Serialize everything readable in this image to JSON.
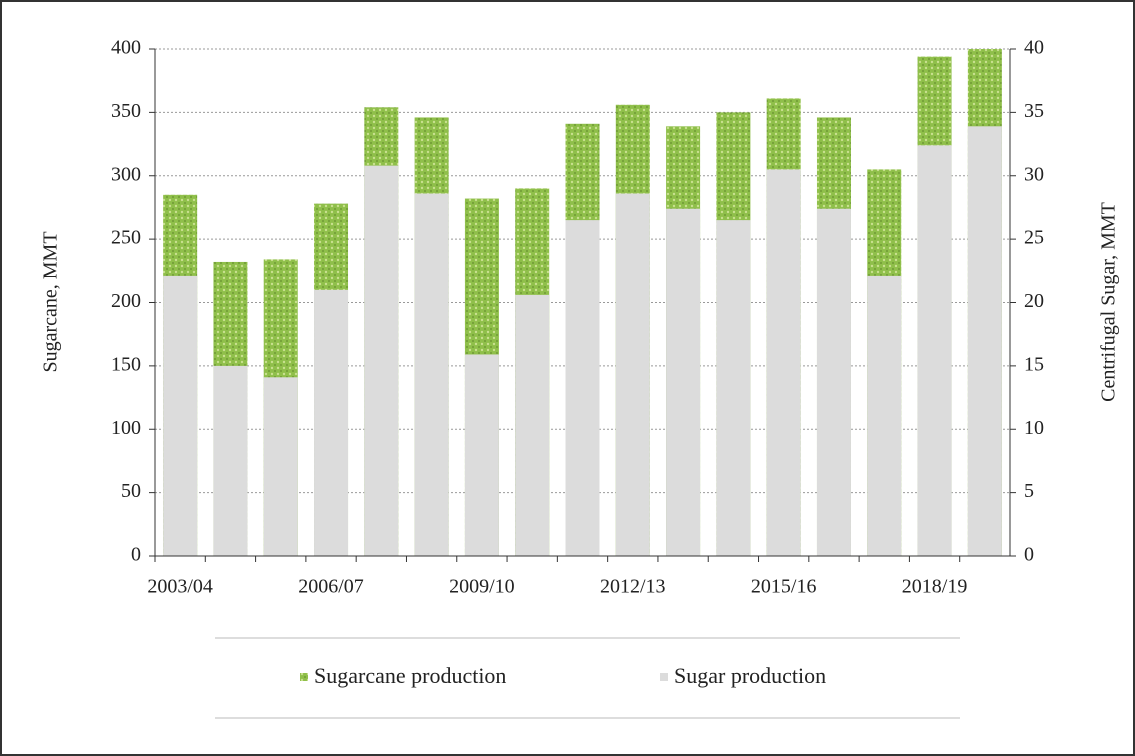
{
  "chart_data": {
    "type": "bar",
    "categories": [
      "2003/04",
      null,
      null,
      "2006/07",
      null,
      null,
      "2009/10",
      null,
      null,
      "2012/13",
      null,
      null,
      "2015/16",
      null,
      null,
      "2018/19",
      null
    ],
    "series": [
      {
        "name": "Sugarcane production",
        "color": "#8fbf4a",
        "axis": "y",
        "values": [
          285,
          232,
          234,
          278,
          354,
          346,
          282,
          290,
          341,
          356,
          339,
          350,
          361,
          346,
          305,
          394,
          400
        ]
      },
      {
        "name": "Sugar production",
        "color": "#dcdcdc",
        "axis": "y2",
        "values": [
          22.1,
          15.0,
          14.1,
          21.0,
          30.8,
          28.6,
          15.9,
          20.6,
          26.5,
          28.6,
          27.4,
          26.5,
          30.5,
          27.4,
          22.1,
          32.4,
          33.9
        ]
      }
    ],
    "ylabel": "Sugarcane, MMT",
    "y2label": "Centrifugal Sugar, MMT",
    "ylim": [
      0,
      400
    ],
    "yticks": [
      0,
      50,
      100,
      150,
      200,
      250,
      300,
      350,
      400
    ],
    "y2lim": [
      0,
      40
    ],
    "y2ticks": [
      0,
      5,
      10,
      15,
      20,
      25,
      30,
      35,
      40
    ],
    "grid": true,
    "legend": "bottom"
  }
}
